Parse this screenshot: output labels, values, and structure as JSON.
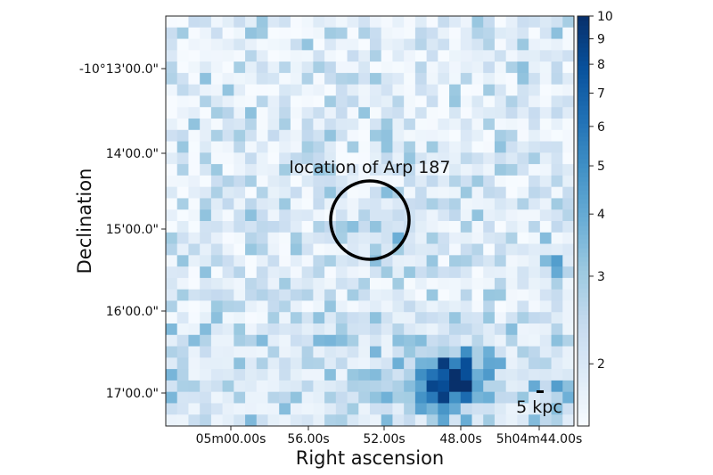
{
  "chart_data": {
    "type": "heatmap",
    "xlabel": "Right ascension",
    "ylabel": "Declination",
    "x_ticks": [
      "05m00.00s",
      "56.00s",
      "52.00s",
      "48.00s",
      "5h04m44.00s"
    ],
    "y_ticks": [
      "-10°13'00.0\"",
      "14'00.0\"",
      "15'00.0\"",
      "16'00.0\"",
      "17'00.0\""
    ],
    "colorbar": {
      "scale": "log",
      "range": [
        1.5,
        10
      ],
      "ticks": [
        2,
        3,
        4,
        5,
        6,
        7,
        8,
        9,
        10
      ],
      "tick_labels": [
        "2",
        "3",
        "4",
        "5",
        "6",
        "7",
        "8",
        "9",
        "10"
      ],
      "colormap": "Blues"
    },
    "grid": false,
    "annotations": {
      "circle_label": "location of Arp 187",
      "scale_bar_label": "5 kpc"
    },
    "colors": {
      "low": "#f7fbff",
      "high": "#08306b"
    }
  }
}
